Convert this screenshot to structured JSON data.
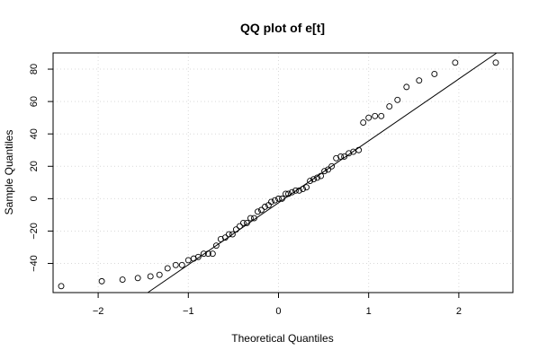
{
  "chart_data": {
    "type": "scatter",
    "title": "QQ plot of e[t]",
    "xlabel": "Theoretical Quantiles",
    "ylabel": "Sample Quantiles",
    "xlim": [
      -2.5,
      2.6
    ],
    "ylim": [
      -58,
      90
    ],
    "xticks": [
      -2,
      -1,
      0,
      1,
      2
    ],
    "yticks": [
      -40,
      -20,
      0,
      20,
      40,
      60,
      80
    ],
    "xtick_labels": [
      "−2",
      "−1",
      "0",
      "1",
      "2"
    ],
    "ytick_labels": [
      "−40",
      "−20",
      "0",
      "20",
      "40",
      "60",
      "80"
    ],
    "grid": true,
    "legend": "none",
    "reference_line": {
      "type": "qqline",
      "x": [
        -1.45,
        2.42
      ],
      "y": [
        -58,
        90
      ]
    },
    "x": [
      -2.41,
      -1.96,
      -1.73,
      -1.56,
      -1.42,
      -1.32,
      -1.23,
      -1.14,
      -1.07,
      -1.0,
      -0.94,
      -0.89,
      -0.83,
      -0.78,
      -0.73,
      -0.69,
      -0.64,
      -0.59,
      -0.55,
      -0.51,
      -0.47,
      -0.43,
      -0.39,
      -0.35,
      -0.31,
      -0.27,
      -0.23,
      -0.19,
      -0.15,
      -0.11,
      -0.08,
      -0.04,
      0.0,
      0.04,
      0.08,
      0.11,
      0.15,
      0.19,
      0.23,
      0.27,
      0.31,
      0.35,
      0.39,
      0.43,
      0.47,
      0.51,
      0.55,
      0.59,
      0.64,
      0.69,
      0.73,
      0.78,
      0.83,
      0.89,
      0.94,
      1.0,
      1.07,
      1.14,
      1.23,
      1.32,
      1.42,
      1.56,
      1.73,
      1.96,
      2.41
    ],
    "y": [
      -54,
      -51,
      -50,
      -49,
      -48,
      -47,
      -43,
      -41,
      -41,
      -38,
      -37,
      -36,
      -34,
      -34,
      -34,
      -29,
      -25,
      -24,
      -22,
      -22,
      -19,
      -17,
      -15,
      -15,
      -12,
      -12,
      -8,
      -7,
      -5,
      -4,
      -2,
      -1,
      0,
      0,
      3,
      3,
      4,
      5,
      5,
      6,
      7,
      11,
      12,
      13,
      14,
      17,
      18,
      20,
      25,
      26,
      26,
      28,
      29,
      30,
      47,
      50,
      51,
      51,
      57,
      61,
      69,
      73,
      77,
      84,
      84
    ]
  }
}
